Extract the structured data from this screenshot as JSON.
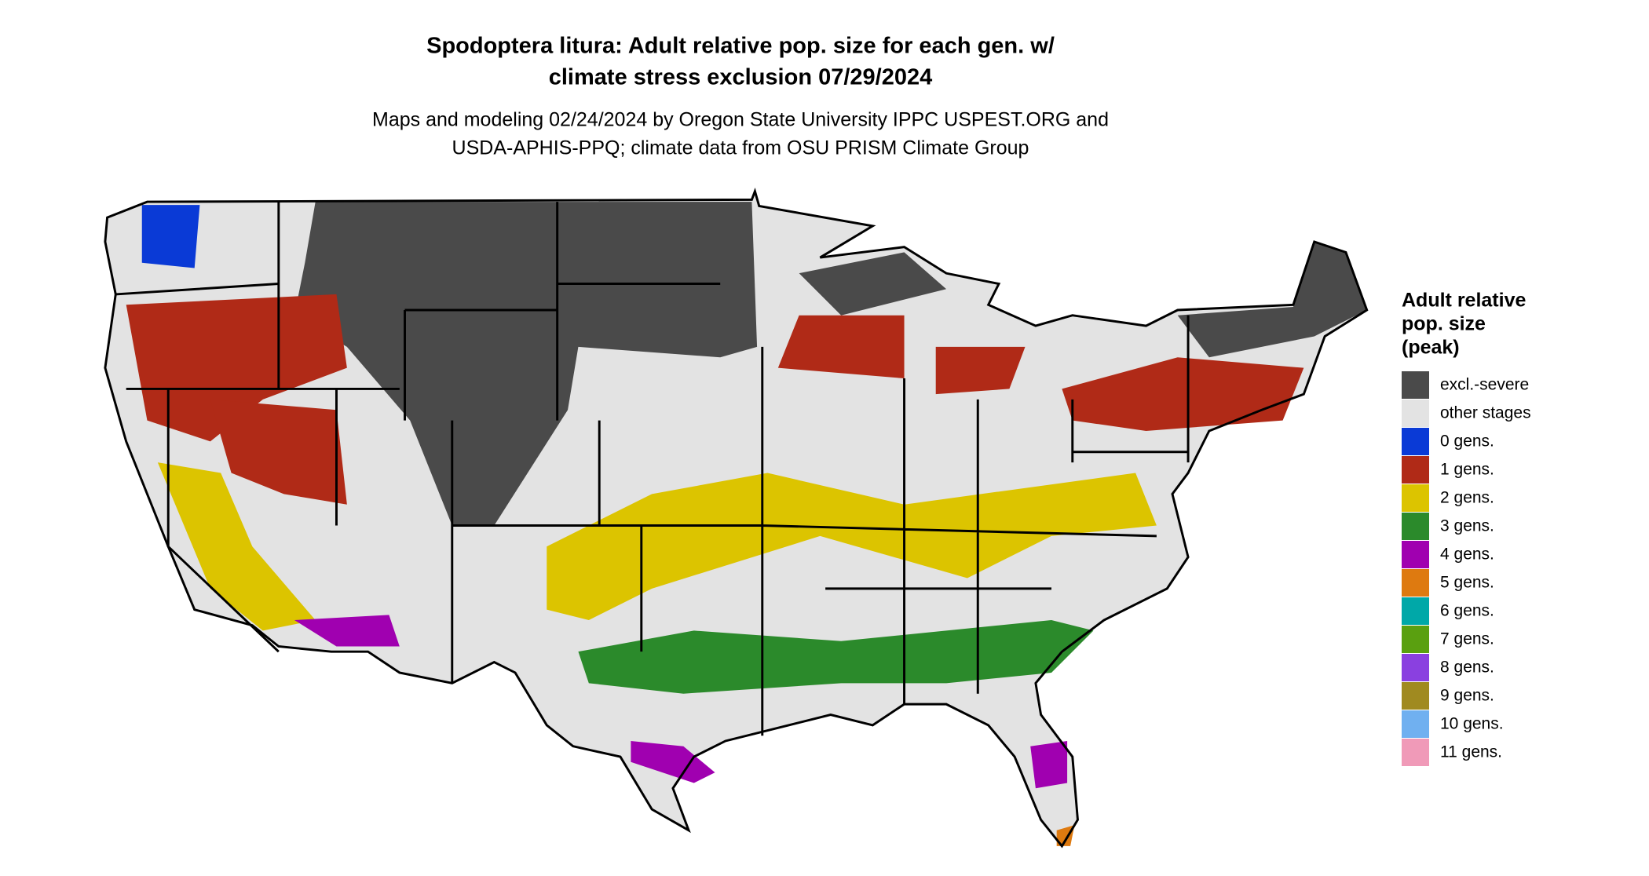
{
  "title": [
    "Spodoptera litura: Adult relative pop. size for each gen. w/",
    "climate stress exclusion 07/29/2024"
  ],
  "subtitle": [
    "Maps and modeling 02/24/2024 by Oregon State University IPPC USPEST.ORG and",
    "USDA-APHIS-PPQ; climate data from OSU PRISM Climate Group"
  ],
  "legend": {
    "title": [
      "Adult relative",
      "pop. size",
      "(peak)"
    ],
    "items": [
      {
        "label": "excl.-severe",
        "color": "#4a4a4a"
      },
      {
        "label": "other stages",
        "color": "#e3e3e3"
      },
      {
        "label": "0 gens.",
        "color": "#0a3ad6"
      },
      {
        "label": "1 gens.",
        "color": "#b02a17"
      },
      {
        "label": "2 gens.",
        "color": "#dcc400"
      },
      {
        "label": "3 gens.",
        "color": "#2b8a2b"
      },
      {
        "label": "4 gens.",
        "color": "#a000b0"
      },
      {
        "label": "5 gens.",
        "color": "#de7a10"
      },
      {
        "label": "6 gens.",
        "color": "#00a8a8"
      },
      {
        "label": "7 gens.",
        "color": "#5aa010"
      },
      {
        "label": "8 gens.",
        "color": "#8a40e0"
      },
      {
        "label": "9 gens.",
        "color": "#a08a20"
      },
      {
        "label": "10 gens.",
        "color": "#70b0f0"
      },
      {
        "label": "11 gens.",
        "color": "#f09ab8"
      }
    ]
  }
}
